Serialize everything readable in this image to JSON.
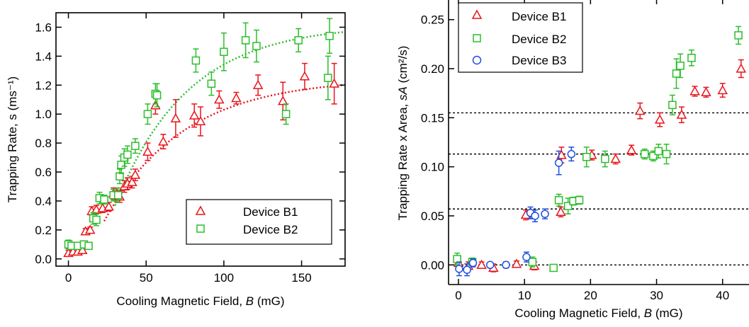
{
  "chart_data": [
    {
      "type": "scatter",
      "xlabel_prefix": "Cooling Magnetic Field, ",
      "xlabel_var": "B",
      "xlabel_suffix": " (mG)",
      "ylabel": "Trapping Rate, s (ms⁻¹)",
      "xlim": [
        -8,
        178
      ],
      "ylim": [
        -0.05,
        1.7
      ],
      "xticks": [
        0,
        50,
        100,
        150
      ],
      "yticks": [
        0.0,
        0.2,
        0.4,
        0.6,
        0.8,
        1.0,
        1.2,
        1.4,
        1.6
      ],
      "ytick_labels": [
        "0.0",
        "0.2",
        "0.4",
        "0.6",
        "0.8",
        "1.0",
        "1.2",
        "1.4",
        "1.6"
      ],
      "legend_position": "bottom-right",
      "series": [
        {
          "name": "Device B1",
          "marker": "triangle",
          "color": "#e8141c",
          "points": [
            [
              0,
              0.04,
              0.02
            ],
            [
              3,
              0.05,
              0.02
            ],
            [
              6,
              0.05,
              0.02
            ],
            [
              9,
              0.06,
              0.02
            ],
            [
              11,
              0.19,
              0.02
            ],
            [
              14,
              0.2,
              0.02
            ],
            [
              15,
              0.33,
              0.03
            ],
            [
              18,
              0.34,
              0.03
            ],
            [
              22,
              0.35,
              0.03
            ],
            [
              26,
              0.36,
              0.03
            ],
            [
              29,
              0.45,
              0.04
            ],
            [
              31,
              0.45,
              0.04
            ],
            [
              33,
              0.43,
              0.04
            ],
            [
              36,
              0.5,
              0.04
            ],
            [
              38,
              0.52,
              0.04
            ],
            [
              41,
              0.53,
              0.04
            ],
            [
              43,
              0.58,
              0.04
            ],
            [
              51,
              0.74,
              0.06
            ],
            [
              56,
              1.06,
              0.06
            ],
            [
              61,
              0.81,
              0.05
            ],
            [
              69,
              0.97,
              0.13
            ],
            [
              81,
              0.99,
              0.08
            ],
            [
              85,
              0.95,
              0.1
            ],
            [
              97,
              1.1,
              0.06
            ],
            [
              108,
              1.11,
              0.04
            ],
            [
              122,
              1.2,
              0.07
            ],
            [
              138,
              1.09,
              0.13
            ],
            [
              152,
              1.26,
              0.09
            ],
            [
              171,
              1.21,
              0.14
            ]
          ]
        },
        {
          "name": "Device B2",
          "marker": "square",
          "color": "#2cbd2c",
          "points": [
            [
              0,
              0.1,
              0.03
            ],
            [
              2,
              0.09,
              0.02
            ],
            [
              6,
              0.09,
              0.02
            ],
            [
              10,
              0.1,
              0.02
            ],
            [
              13,
              0.09,
              0.02
            ],
            [
              16,
              0.28,
              0.04
            ],
            [
              18,
              0.27,
              0.04
            ],
            [
              20,
              0.42,
              0.04
            ],
            [
              23,
              0.41,
              0.03
            ],
            [
              29,
              0.44,
              0.04
            ],
            [
              32,
              0.44,
              0.05
            ],
            [
              33,
              0.57,
              0.05
            ],
            [
              34,
              0.65,
              0.06
            ],
            [
              36,
              0.7,
              0.06
            ],
            [
              38,
              0.72,
              0.06
            ],
            [
              43,
              0.78,
              0.05
            ],
            [
              51,
              1.0,
              0.07
            ],
            [
              56,
              1.14,
              0.07
            ],
            [
              57,
              1.13,
              0.08
            ],
            [
              82,
              1.37,
              0.08
            ],
            [
              92,
              1.21,
              0.08
            ],
            [
              100,
              1.43,
              0.13
            ],
            [
              114,
              1.51,
              0.12
            ],
            [
              121,
              1.47,
              0.11
            ],
            [
              140,
              1.0,
              0.07
            ],
            [
              148,
              1.51,
              0.08
            ],
            [
              167,
              1.25,
              0.15
            ],
            [
              168,
              1.54,
              0.12
            ]
          ]
        }
      ]
    },
    {
      "type": "scatter",
      "xlabel_prefix": "Cooling Magnetic Field, ",
      "xlabel_var": "B",
      "xlabel_suffix": " (mG)",
      "ylabel_prefix": "Trapping Rate x Area, ",
      "ylabel_var": "sA",
      "ylabel_suffix": " (cm²/s)",
      "xlim": [
        -1.5,
        44
      ],
      "ylim": [
        -0.02,
        0.27
      ],
      "xticks": [
        0,
        10,
        20,
        30,
        40
      ],
      "yticks": [
        0.0,
        0.05,
        0.1,
        0.15,
        0.2,
        0.25
      ],
      "ytick_labels": [
        "0.00",
        "0.05",
        "0.10",
        "0.15",
        "0.20",
        "0.25"
      ],
      "reference_lines_y": [
        0.0,
        0.057,
        0.113,
        0.155
      ],
      "legend_position": "top-left",
      "series": [
        {
          "name": "Device B1",
          "marker": "triangle",
          "color": "#e8141c",
          "points": [
            [
              0,
              0.002,
              0.006
            ],
            [
              1.5,
              -0.001,
              0.004
            ],
            [
              3.5,
              0.0,
              0.003
            ],
            [
              5.3,
              -0.003,
              0.004
            ],
            [
              8.8,
              0.001,
              0.003
            ],
            [
              10.2,
              0.051,
              0.005
            ],
            [
              11.5,
              -0.001,
              0.004
            ],
            [
              15.5,
              0.054,
              0.005
            ],
            [
              15.6,
              0.112,
              0.008
            ],
            [
              20.2,
              0.112,
              0.005
            ],
            [
              23.8,
              0.108,
              0.005
            ],
            [
              26.2,
              0.117,
              0.005
            ],
            [
              27.5,
              0.157,
              0.008
            ],
            [
              30.5,
              0.148,
              0.007
            ],
            [
              33.8,
              0.153,
              0.008
            ],
            [
              35.8,
              0.177,
              0.005
            ],
            [
              37.5,
              0.176,
              0.005
            ],
            [
              40,
              0.178,
              0.007
            ],
            [
              42.8,
              0.2,
              0.009
            ]
          ]
        },
        {
          "name": "Device B2",
          "marker": "square",
          "color": "#2cbd2c",
          "points": [
            [
              -0.2,
              0.006,
              0.006
            ],
            [
              2.1,
              0.003,
              0.004
            ],
            [
              11.2,
              0.003,
              0.005
            ],
            [
              14.4,
              -0.003,
              0.003
            ],
            [
              15.2,
              0.066,
              0.006
            ],
            [
              16.6,
              0.06,
              0.008
            ],
            [
              17.4,
              0.065,
              0.004
            ],
            [
              18.3,
              0.066,
              0.004
            ],
            [
              19.4,
              0.11,
              0.01
            ],
            [
              22.2,
              0.108,
              0.008
            ],
            [
              28.2,
              0.113,
              0.005
            ],
            [
              29.5,
              0.111,
              0.005
            ],
            [
              30.3,
              0.116,
              0.007
            ],
            [
              31.5,
              0.113,
              0.01
            ],
            [
              32.4,
              0.163,
              0.01
            ],
            [
              33,
              0.195,
              0.015
            ],
            [
              33.6,
              0.203,
              0.012
            ],
            [
              35.3,
              0.211,
              0.008
            ],
            [
              42.4,
              0.234,
              0.009
            ]
          ]
        },
        {
          "name": "Device B3",
          "marker": "circle",
          "color": "#1d4fe0",
          "points": [
            [
              0.1,
              -0.004,
              0.007
            ],
            [
              1.3,
              -0.005,
              0.006
            ],
            [
              2.2,
              0.002,
              0.004
            ],
            [
              4.8,
              0.0,
              0.002
            ],
            [
              7.2,
              0.0,
              0.003
            ],
            [
              10.3,
              0.008,
              0.005
            ],
            [
              10.9,
              0.053,
              0.006
            ],
            [
              11.6,
              0.05,
              0.006
            ],
            [
              13.1,
              0.052,
              0.005
            ],
            [
              15.2,
              0.104,
              0.012
            ],
            [
              17.1,
              0.113,
              0.007
            ]
          ]
        }
      ]
    }
  ]
}
